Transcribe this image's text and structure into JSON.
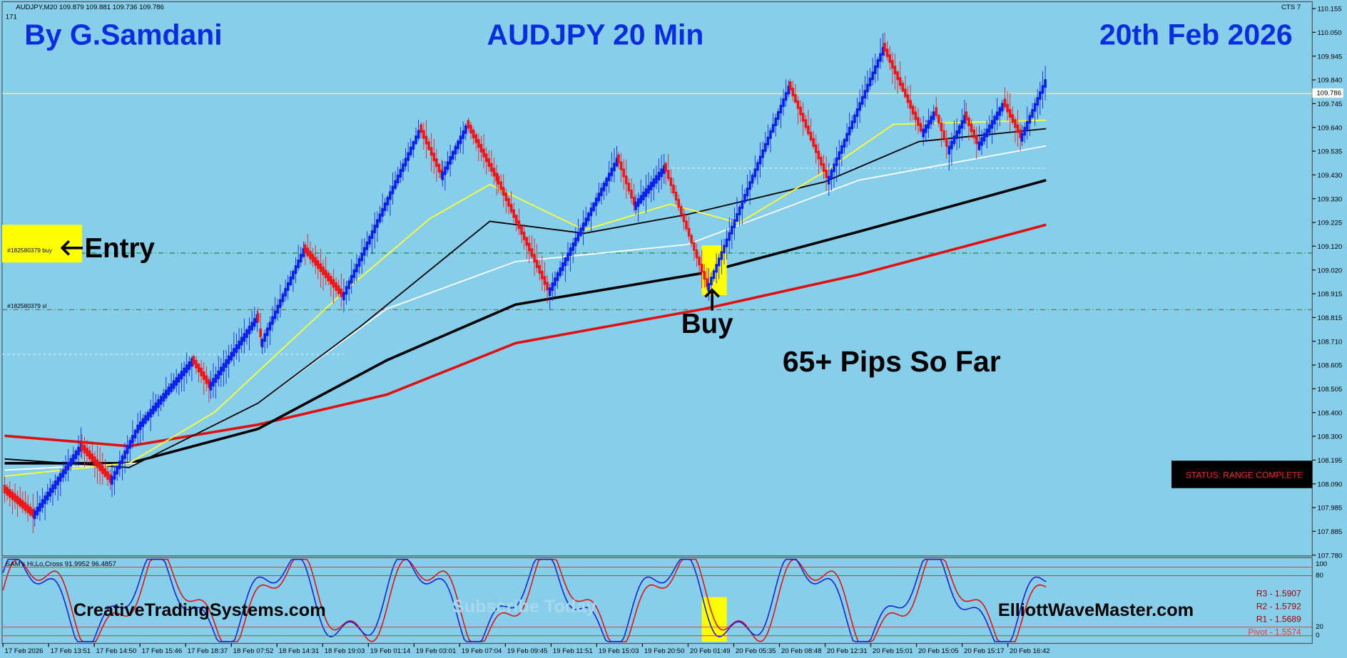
{
  "header": {
    "symbol_info": "AUDJPY,M20  109.879 109.881 109.736 109.786",
    "bar_count": "171",
    "tag": "CTS 7"
  },
  "titles": {
    "author": "By G.Samdani",
    "instrument": "AUDJPY 20 Min",
    "date": "20th Feb 2026"
  },
  "annotations": {
    "entry": "Entry",
    "buy": "Buy",
    "pips": "65+ Pips So Far",
    "status": "STATUS: RANGE COMPLETE"
  },
  "orders": {
    "buy": "#182580379 buy",
    "sl": "#182580379 sl"
  },
  "price_axis": [
    "110.155",
    "110.050",
    "109.945",
    "109.840",
    "109.745",
    "109.640",
    "109.535",
    "109.430",
    "109.330",
    "109.225",
    "109.120",
    "109.020",
    "108.915",
    "108.815",
    "108.710",
    "108.605",
    "108.505",
    "108.400",
    "108.300",
    "108.195",
    "108.090",
    "107.985",
    "107.885",
    "107.780"
  ],
  "current_price": "109.786",
  "indicator": {
    "title": "SAM's Hi,Lo,Cross 91.9952 96.4857",
    "levels": [
      "100",
      "80",
      "20",
      "0"
    ],
    "pivots": [
      "R3 - 1.5907",
      "R2 - 1.5792",
      "R1 - 1.5689",
      "Pivot - 1.5574"
    ],
    "watermark_left": "CreativeTradingSystems.com",
    "watermark_mid": "Subscribe Today",
    "watermark_right": "ElliottWaveMaster.com"
  },
  "time_axis": [
    "17 Feb 2026",
    "17 Feb 13:51",
    "17 Feb 14:50",
    "17 Feb 15:46",
    "17 Feb 18:37",
    "18 Feb 07:52",
    "18 Feb 14:31",
    "18 Feb 19:03",
    "19 Feb 01:14",
    "19 Feb 03:01",
    "19 Feb 07:04",
    "19 Feb 09:45",
    "19 Feb 11:51",
    "19 Feb 15:03",
    "19 Feb 20:50",
    "20 Feb 01:49",
    "20 Feb 05:35",
    "20 Feb 08:48",
    "20 Feb 12:31",
    "20 Feb 15:01",
    "20 Feb 15:05",
    "20 Feb 15:17",
    "20 Feb 16:42"
  ]
}
